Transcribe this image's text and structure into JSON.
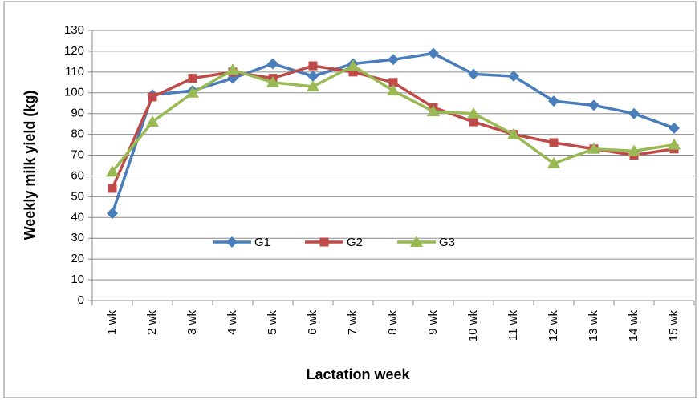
{
  "chart_data": {
    "type": "line",
    "x_label": "Lactation week",
    "y_label": "Weekly milk yield (kg)",
    "categories": [
      "1 wk",
      "2 wk",
      "3 wk",
      "4 wk",
      "5 wk",
      "6 wk",
      "7 wk",
      "8 wk",
      "9 wk",
      "10 wk",
      "11 wk",
      "12 wk",
      "13 wk",
      "14 wk",
      "15 wk"
    ],
    "series": [
      {
        "name": "G1",
        "color": "#4a7ebb",
        "marker": "diamond",
        "values": [
          42,
          99,
          101,
          107,
          114,
          108,
          114,
          116,
          119,
          109,
          108,
          96,
          94,
          90,
          83
        ]
      },
      {
        "name": "G2",
        "color": "#be4b48",
        "marker": "square",
        "values": [
          54,
          98,
          107,
          110,
          107,
          113,
          110,
          105,
          93,
          86,
          80,
          76,
          73,
          70,
          73
        ]
      },
      {
        "name": "G3",
        "color": "#98b954",
        "marker": "triangle",
        "values": [
          62,
          86,
          100,
          111,
          105,
          103,
          113,
          101,
          91,
          90,
          80,
          66,
          73,
          72,
          75
        ]
      }
    ],
    "ylim": [
      0,
      130
    ],
    "yticks": [
      0,
      10,
      20,
      30,
      40,
      50,
      60,
      70,
      80,
      90,
      100,
      110,
      120,
      130
    ],
    "grid": true
  }
}
